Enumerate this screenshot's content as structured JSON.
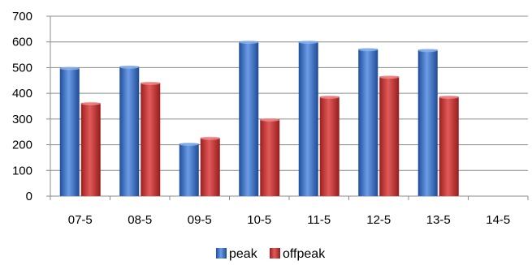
{
  "chart_data": {
    "type": "bar",
    "categories": [
      "07-5",
      "08-5",
      "09-5",
      "10-5",
      "11-5",
      "12-5",
      "13-5",
      "14-5"
    ],
    "series": [
      {
        "name": "peak",
        "values": [
          500,
          505,
          205,
          602,
          602,
          573,
          570,
          null
        ],
        "color": "#3b6fc4"
      },
      {
        "name": "offpeak",
        "values": [
          363,
          442,
          228,
          300,
          388,
          466,
          388,
          null
        ],
        "color": "#c42f2f"
      }
    ],
    "ylim": [
      0,
      700
    ],
    "yticks": [
      0,
      100,
      200,
      300,
      400,
      500,
      600,
      700
    ],
    "grid": true,
    "legend_position": "bottom"
  }
}
